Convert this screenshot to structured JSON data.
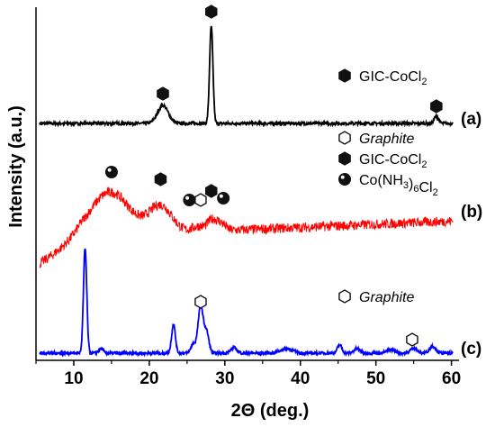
{
  "chart_data": {
    "type": "line",
    "xlabel_main": "2",
    "xlabel_symbol": "Θ",
    "xlabel_rest": " (deg.)",
    "ylabel": "Intensity (a.u.)",
    "xlim": [
      5,
      61
    ],
    "x_ticks": [
      10,
      20,
      30,
      40,
      50,
      60
    ],
    "grid": false,
    "colors": {
      "a": "#000000",
      "b": "#ff0000",
      "c": "#0000ff"
    },
    "series": [
      {
        "name": "(a)",
        "peaks": [
          {
            "x": 21.8,
            "h": 20,
            "w": 0.7
          },
          {
            "x": 28.2,
            "h": 108,
            "w": 0.22
          },
          {
            "x": 58.0,
            "h": 8,
            "w": 0.28
          }
        ],
        "markers": [
          {
            "x": 21.8,
            "symbol": "hexagon-filled",
            "y": 104
          },
          {
            "x": 28.2,
            "symbol": "hexagon-filled",
            "y": 13
          },
          {
            "x": 58.0,
            "symbol": "hexagon-filled",
            "y": 118
          }
        ]
      },
      {
        "name": "(b)",
        "peaks": [
          {
            "x": 14.8,
            "h": 48,
            "w": 2.6
          },
          {
            "x": 21.5,
            "h": 30,
            "w": 1.5
          },
          {
            "x": 26.5,
            "h": 6,
            "w": 0.8
          },
          {
            "x": 28.3,
            "h": 12,
            "w": 0.6
          },
          {
            "x": 29.5,
            "h": 8,
            "w": 0.6
          }
        ],
        "markers": [
          {
            "x": 15.0,
            "symbol": "sphere",
            "y": 191
          },
          {
            "x": 21.5,
            "symbol": "hexagon-filled",
            "y": 199
          },
          {
            "x": 25.3,
            "symbol": "sphere",
            "y": 222
          },
          {
            "x": 26.8,
            "symbol": "hexagon-open",
            "y": 222
          },
          {
            "x": 28.2,
            "symbol": "hexagon-filled",
            "y": 212
          },
          {
            "x": 29.8,
            "symbol": "sphere",
            "y": 220
          }
        ]
      },
      {
        "name": "(c)",
        "peaks": [
          {
            "x": 11.5,
            "h": 116,
            "w": 0.22
          },
          {
            "x": 13.6,
            "h": 5,
            "w": 0.3
          },
          {
            "x": 23.2,
            "h": 32,
            "w": 0.25
          },
          {
            "x": 25.8,
            "h": 10,
            "w": 0.3
          },
          {
            "x": 26.8,
            "h": 52,
            "w": 0.35
          },
          {
            "x": 27.6,
            "h": 22,
            "w": 0.3
          },
          {
            "x": 31.2,
            "h": 6,
            "w": 0.4
          },
          {
            "x": 38.2,
            "h": 5,
            "w": 0.8
          },
          {
            "x": 45.2,
            "h": 9,
            "w": 0.3
          },
          {
            "x": 47.5,
            "h": 5,
            "w": 0.4
          },
          {
            "x": 52.0,
            "h": 4,
            "w": 0.5
          },
          {
            "x": 55.0,
            "h": 6,
            "w": 0.4
          },
          {
            "x": 57.5,
            "h": 8,
            "w": 0.4
          }
        ],
        "markers": [
          {
            "x": 26.8,
            "symbol": "hexagon-open",
            "y": 335
          },
          {
            "x": 54.8,
            "symbol": "hexagon-open",
            "y": 377
          }
        ]
      }
    ],
    "legends": {
      "a": [
        {
          "symbol": "hexagon-filled",
          "text": "GIC-CoCl",
          "sub": "2"
        }
      ],
      "b": [
        {
          "symbol": "hexagon-open",
          "text": "Graphite",
          "italic": true
        },
        {
          "symbol": "hexagon-filled",
          "text": "GIC-CoCl",
          "sub": "2"
        },
        {
          "symbol": "sphere",
          "text": "Co(NH",
          "sub1": "3",
          "mid": ")",
          "sub2": "6",
          "tail": "Cl",
          "sub3": "2"
        }
      ],
      "c": [
        {
          "symbol": "hexagon-open",
          "text": "Graphite",
          "italic": true
        }
      ]
    }
  }
}
